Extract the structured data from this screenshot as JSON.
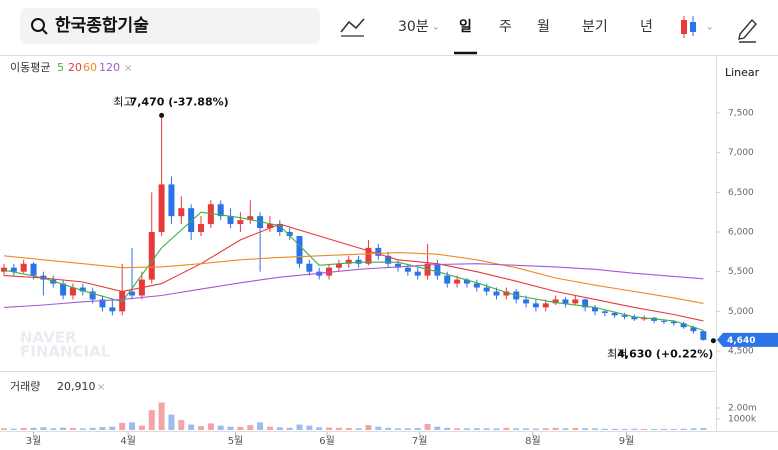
{
  "header": {
    "title": "한국종합기술",
    "interval": "30분",
    "periods": [
      "일",
      "주",
      "월",
      "분기",
      "년"
    ]
  },
  "chart_data": {
    "type": "candlestick",
    "ma_label": "이동평균",
    "series": [
      {
        "name": "5",
        "color": "#3fae49",
        "x": [
          0,
          4,
          8,
          12,
          16,
          20,
          24,
          28,
          32,
          36,
          40,
          44,
          48,
          52,
          56,
          60,
          64,
          68,
          71
        ],
        "values": [
          5520,
          5420,
          5260,
          5120,
          5800,
          6250,
          6180,
          6080,
          5580,
          5620,
          5620,
          5500,
          5360,
          5200,
          5110,
          5050,
          4930,
          4880,
          4760
        ]
      },
      {
        "name": "20",
        "color": "#e8393b",
        "x": [
          0,
          4,
          8,
          12,
          16,
          20,
          24,
          28,
          32,
          36,
          40,
          44,
          48,
          52,
          56,
          60,
          64,
          68,
          71
        ],
        "values": [
          5450,
          5420,
          5370,
          5250,
          5350,
          5600,
          5900,
          6100,
          5950,
          5800,
          5650,
          5600,
          5500,
          5380,
          5250,
          5150,
          5050,
          4960,
          4880
        ]
      },
      {
        "name": "60",
        "color": "#f08a24",
        "x": [
          0,
          4,
          8,
          12,
          16,
          20,
          24,
          28,
          32,
          36,
          40,
          44,
          48,
          52,
          56,
          60,
          64,
          68,
          71
        ],
        "values": [
          5700,
          5650,
          5600,
          5550,
          5560,
          5600,
          5650,
          5680,
          5700,
          5720,
          5740,
          5720,
          5650,
          5550,
          5420,
          5330,
          5250,
          5170,
          5100
        ]
      },
      {
        "name": "120",
        "color": "#a45ad6",
        "x": [
          0,
          4,
          8,
          12,
          16,
          20,
          24,
          28,
          32,
          36,
          40,
          44,
          48,
          52,
          56,
          60,
          64,
          68,
          71
        ],
        "values": [
          5050,
          5080,
          5120,
          5150,
          5200,
          5280,
          5360,
          5430,
          5480,
          5530,
          5560,
          5590,
          5600,
          5580,
          5560,
          5530,
          5480,
          5440,
          5410
        ]
      }
    ],
    "ohlc": [
      [
        5500,
        5600,
        5450,
        5550
      ],
      [
        5550,
        5600,
        5450,
        5500
      ],
      [
        5500,
        5650,
        5480,
        5600
      ],
      [
        5600,
        5620,
        5400,
        5450
      ],
      [
        5450,
        5500,
        5200,
        5400
      ],
      [
        5400,
        5450,
        5300,
        5350
      ],
      [
        5350,
        5400,
        5150,
        5200
      ],
      [
        5200,
        5350,
        5150,
        5300
      ],
      [
        5300,
        5350,
        5200,
        5250
      ],
      [
        5250,
        5300,
        5100,
        5150
      ],
      [
        5150,
        5200,
        5000,
        5050
      ],
      [
        5050,
        5150,
        4950,
        5000
      ],
      [
        5000,
        5600,
        4950,
        5250
      ],
      [
        5250,
        5800,
        5150,
        5200
      ],
      [
        5200,
        5500,
        5150,
        5400
      ],
      [
        5400,
        6500,
        5350,
        6000
      ],
      [
        6000,
        7470,
        5950,
        6600
      ],
      [
        6600,
        6700,
        6100,
        6200
      ],
      [
        6200,
        6450,
        6100,
        6300
      ],
      [
        6300,
        6350,
        5900,
        6000
      ],
      [
        6000,
        6200,
        5950,
        6100
      ],
      [
        6100,
        6400,
        6050,
        6350
      ],
      [
        6350,
        6400,
        6150,
        6200
      ],
      [
        6200,
        6300,
        6050,
        6100
      ],
      [
        6100,
        6250,
        6000,
        6150
      ],
      [
        6150,
        6400,
        6100,
        6200
      ],
      [
        6200,
        6250,
        5500,
        6050
      ],
      [
        6050,
        6200,
        6000,
        6100
      ],
      [
        6100,
        6150,
        5950,
        6000
      ],
      [
        6000,
        6050,
        5900,
        5950
      ],
      [
        5950,
        5950,
        5550,
        5600
      ],
      [
        5600,
        5650,
        5450,
        5500
      ],
      [
        5500,
        5550,
        5400,
        5450
      ],
      [
        5450,
        5600,
        5400,
        5550
      ],
      [
        5550,
        5650,
        5500,
        5600
      ],
      [
        5600,
        5700,
        5550,
        5650
      ],
      [
        5650,
        5700,
        5550,
        5600
      ],
      [
        5600,
        5900,
        5580,
        5800
      ],
      [
        5800,
        5850,
        5650,
        5700
      ],
      [
        5700,
        5750,
        5550,
        5600
      ],
      [
        5600,
        5650,
        5500,
        5550
      ],
      [
        5550,
        5600,
        5450,
        5500
      ],
      [
        5500,
        5550,
        5400,
        5450
      ],
      [
        5450,
        5850,
        5400,
        5600
      ],
      [
        5600,
        5650,
        5400,
        5450
      ],
      [
        5450,
        5500,
        5300,
        5350
      ],
      [
        5350,
        5450,
        5300,
        5400
      ],
      [
        5400,
        5420,
        5300,
        5350
      ],
      [
        5350,
        5400,
        5250,
        5300
      ],
      [
        5300,
        5350,
        5200,
        5250
      ],
      [
        5250,
        5300,
        5150,
        5200
      ],
      [
        5200,
        5300,
        5150,
        5250
      ],
      [
        5250,
        5280,
        5100,
        5150
      ],
      [
        5150,
        5200,
        5050,
        5100
      ],
      [
        5100,
        5150,
        5000,
        5050
      ],
      [
        5050,
        5150,
        5000,
        5100
      ],
      [
        5100,
        5200,
        5080,
        5150
      ],
      [
        5150,
        5180,
        5050,
        5100
      ],
      [
        5100,
        5200,
        5080,
        5150
      ],
      [
        5150,
        5160,
        5000,
        5050
      ],
      [
        5050,
        5080,
        4950,
        5000
      ],
      [
        5000,
        5020,
        4940,
        4980
      ],
      [
        4980,
        5000,
        4920,
        4950
      ],
      [
        4950,
        4980,
        4900,
        4930
      ],
      [
        4930,
        4960,
        4880,
        4900
      ],
      [
        4900,
        4950,
        4880,
        4920
      ],
      [
        4920,
        4930,
        4850,
        4880
      ],
      [
        4880,
        4900,
        4840,
        4870
      ],
      [
        4870,
        4890,
        4820,
        4850
      ],
      [
        4850,
        4870,
        4780,
        4800
      ],
      [
        4800,
        4820,
        4720,
        4750
      ],
      [
        4750,
        4760,
        4630,
        4640
      ]
    ],
    "up_color": "#e8393b",
    "down_color": "#2b73e8",
    "scale": "Linear",
    "ylim": [
      4248,
      8206
    ],
    "yticks": [
      {
        "value": 7500,
        "label": "7,500"
      },
      {
        "value": 7000,
        "label": "7,000"
      },
      {
        "value": 6500,
        "label": "6,500"
      },
      {
        "value": 6000,
        "label": "6,000"
      },
      {
        "value": 5500,
        "label": "5,500"
      },
      {
        "value": 5000,
        "label": "5,000"
      },
      {
        "value": 4500,
        "label": "4,500"
      }
    ],
    "high_label": "최고",
    "high_text": "7,470 (-37.88%)",
    "low_label": "최저",
    "low_text": "4,630 (+0.22%)",
    "last_price": {
      "value": 4640,
      "label": "4,640"
    },
    "watermark": [
      "NAVER",
      "FINANCIAL"
    ],
    "volume_label": "거래량",
    "volume_text": "20,910",
    "volume": [
      150000,
      120000,
      180000,
      200000,
      250000,
      150000,
      220000,
      180000,
      140000,
      200000,
      260000,
      300000,
      650000,
      700000,
      400000,
      1800000,
      2500000,
      1400000,
      900000,
      500000,
      350000,
      600000,
      400000,
      300000,
      280000,
      450000,
      700000,
      300000,
      250000,
      200000,
      500000,
      400000,
      250000,
      220000,
      200000,
      180000,
      150000,
      450000,
      300000,
      200000,
      150000,
      150000,
      180000,
      550000,
      300000,
      200000,
      150000,
      150000,
      160000,
      150000,
      140000,
      200000,
      150000,
      140000,
      130000,
      160000,
      200000,
      150000,
      180000,
      160000,
      150000,
      120000,
      110000,
      100000,
      120000,
      100000,
      90000,
      100000,
      90000,
      110000,
      150000,
      180000
    ],
    "vlim": [
      0,
      5000000
    ],
    "vticks": [
      {
        "value": 2000000,
        "label": "2.00m"
      },
      {
        "value": 1000000,
        "label": "1000k"
      }
    ],
    "month_ticks": [
      {
        "value": 3,
        "label": "3월"
      },
      {
        "value": 12.6,
        "label": "4월"
      },
      {
        "value": 23.5,
        "label": "5월"
      },
      {
        "value": 32.8,
        "label": "6월"
      },
      {
        "value": 42.2,
        "label": "7월"
      },
      {
        "value": 53.7,
        "label": "8월"
      },
      {
        "value": 63.2,
        "label": "9월"
      }
    ]
  }
}
